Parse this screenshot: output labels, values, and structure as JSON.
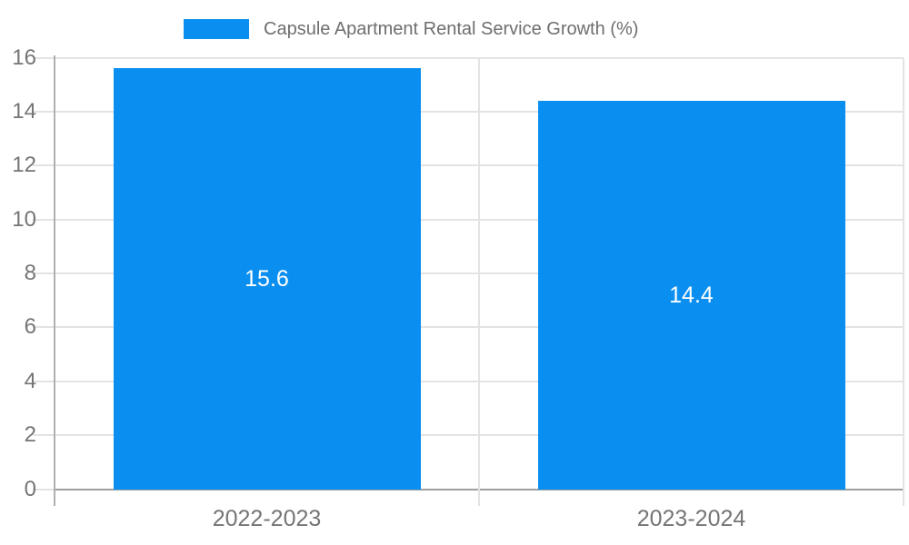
{
  "chart_data": {
    "type": "bar",
    "title": "Capsule Apartment Rental Service Growth (%)",
    "legend": {
      "label": "Capsule Apartment Rental Service Growth (%)",
      "position": "top-center"
    },
    "categories": [
      "2022-2023",
      "2023-2024"
    ],
    "values": [
      15.6,
      14.4
    ],
    "value_labels": [
      "15.6",
      "14.4"
    ],
    "xlabel": "",
    "ylabel": "",
    "yticks": [
      0,
      2,
      4,
      6,
      8,
      10,
      12,
      14,
      16
    ],
    "ylim": [
      0,
      16
    ],
    "grid": true,
    "legend_position": "top",
    "colors": {
      "bar": "#0a8ff0",
      "gridline": "#e3e3e3",
      "axis_line": "#b0b0b0",
      "baseline": "#9e9e9e",
      "tick_label": "#757575",
      "title_text": "#6e6e6e",
      "value_label": "#ffffff",
      "background": "#ffffff"
    }
  }
}
